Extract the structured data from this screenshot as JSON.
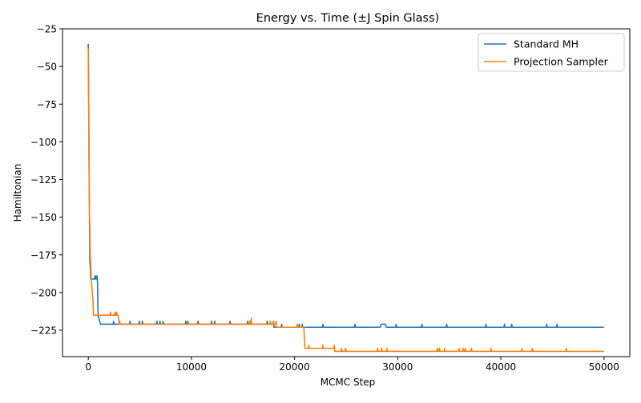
{
  "chart_data": {
    "type": "line",
    "title": "Energy vs. Time (±J Spin Glass)",
    "xlabel": "MCMC Step",
    "ylabel": "Hamiltonian",
    "xlim": [
      -2500,
      52500
    ],
    "ylim": [
      -242.5,
      -25
    ],
    "xticks": [
      0,
      10000,
      20000,
      30000,
      40000,
      50000
    ],
    "yticks": [
      -25,
      -50,
      -75,
      -100,
      -125,
      -150,
      -175,
      -200,
      -225
    ],
    "grid": false,
    "legend_position": "top-right",
    "series": [
      {
        "name": "Standard MH",
        "color": "#1f77b4",
        "points": [
          [
            0,
            -35
          ],
          [
            30,
            -60
          ],
          [
            80,
            -120
          ],
          [
            150,
            -178
          ],
          [
            250,
            -191
          ],
          [
            600,
            -191
          ],
          [
            650,
            -189
          ],
          [
            700,
            -191
          ],
          [
            750,
            -189
          ],
          [
            800,
            -191
          ],
          [
            850,
            -189
          ],
          [
            900,
            -194
          ],
          [
            950,
            -216
          ],
          [
            1000,
            -216
          ],
          [
            1100,
            -219
          ],
          [
            1200,
            -221
          ],
          [
            2400,
            -221
          ],
          [
            2450,
            -219
          ],
          [
            2500,
            -221
          ],
          [
            4000,
            -221
          ],
          [
            4050,
            -219
          ],
          [
            4100,
            -221
          ],
          [
            4900,
            -221
          ],
          [
            4950,
            -219
          ],
          [
            5000,
            -221
          ],
          [
            5200,
            -221
          ],
          [
            5250,
            -219
          ],
          [
            5300,
            -221
          ],
          [
            6600,
            -221
          ],
          [
            6650,
            -219
          ],
          [
            6700,
            -221
          ],
          [
            6900,
            -221
          ],
          [
            6950,
            -219
          ],
          [
            7000,
            -221
          ],
          [
            7200,
            -221
          ],
          [
            7250,
            -219
          ],
          [
            7300,
            -221
          ],
          [
            9400,
            -221
          ],
          [
            9450,
            -219
          ],
          [
            9500,
            -221
          ],
          [
            9600,
            -221
          ],
          [
            9650,
            -219
          ],
          [
            9700,
            -221
          ],
          [
            10600,
            -221
          ],
          [
            10650,
            -219
          ],
          [
            10700,
            -221
          ],
          [
            11900,
            -221
          ],
          [
            11950,
            -219
          ],
          [
            12000,
            -221
          ],
          [
            12200,
            -221
          ],
          [
            12250,
            -219
          ],
          [
            12300,
            -221
          ],
          [
            13700,
            -221
          ],
          [
            13750,
            -219
          ],
          [
            13800,
            -221
          ],
          [
            15400,
            -221
          ],
          [
            15450,
            -219
          ],
          [
            15500,
            -221
          ],
          [
            17300,
            -221
          ],
          [
            17350,
            -219
          ],
          [
            17400,
            -221
          ],
          [
            17900,
            -221
          ],
          [
            17950,
            -219
          ],
          [
            18000,
            -223
          ],
          [
            18700,
            -223
          ],
          [
            18750,
            -221
          ],
          [
            18800,
            -223
          ],
          [
            20400,
            -223
          ],
          [
            20450,
            -221
          ],
          [
            20500,
            -223
          ],
          [
            20700,
            -223
          ],
          [
            20750,
            -221
          ],
          [
            20800,
            -223
          ],
          [
            22700,
            -223
          ],
          [
            22750,
            -221
          ],
          [
            22800,
            -223
          ],
          [
            25800,
            -223
          ],
          [
            25850,
            -221
          ],
          [
            25900,
            -223
          ],
          [
            28300,
            -223
          ],
          [
            28400,
            -221
          ],
          [
            28800,
            -221
          ],
          [
            28900,
            -223
          ],
          [
            29800,
            -223
          ],
          [
            29850,
            -221
          ],
          [
            29900,
            -223
          ],
          [
            32300,
            -223
          ],
          [
            32350,
            -221
          ],
          [
            32400,
            -223
          ],
          [
            34700,
            -223
          ],
          [
            34750,
            -221
          ],
          [
            34800,
            -223
          ],
          [
            38500,
            -223
          ],
          [
            38550,
            -221
          ],
          [
            38600,
            -223
          ],
          [
            40300,
            -223
          ],
          [
            40350,
            -221
          ],
          [
            40400,
            -223
          ],
          [
            41000,
            -223
          ],
          [
            41050,
            -221
          ],
          [
            41100,
            -223
          ],
          [
            44400,
            -223
          ],
          [
            44450,
            -221
          ],
          [
            44500,
            -223
          ],
          [
            45400,
            -223
          ],
          [
            45450,
            -221
          ],
          [
            45500,
            -223
          ],
          [
            50000,
            -223
          ]
        ]
      },
      {
        "name": "Projection Sampler",
        "color": "#ff7f0e",
        "points": [
          [
            0,
            -38
          ],
          [
            40,
            -80
          ],
          [
            100,
            -140
          ],
          [
            200,
            -175
          ],
          [
            300,
            -192
          ],
          [
            450,
            -205
          ],
          [
            500,
            -215
          ],
          [
            2100,
            -215
          ],
          [
            2150,
            -213
          ],
          [
            2200,
            -215
          ],
          [
            2550,
            -215
          ],
          [
            2600,
            -213
          ],
          [
            2650,
            -215
          ],
          [
            2700,
            -215
          ],
          [
            2750,
            -213
          ],
          [
            2800,
            -215
          ],
          [
            2900,
            -215
          ],
          [
            3000,
            -221
          ],
          [
            3050,
            -219
          ],
          [
            3100,
            -221
          ],
          [
            15600,
            -221
          ],
          [
            15650,
            -219
          ],
          [
            15700,
            -221
          ],
          [
            15750,
            -221
          ],
          [
            15800,
            -217
          ],
          [
            15850,
            -221
          ],
          [
            17600,
            -221
          ],
          [
            17650,
            -219
          ],
          [
            17700,
            -221
          ],
          [
            17900,
            -221
          ],
          [
            17950,
            -219
          ],
          [
            18000,
            -221
          ],
          [
            18150,
            -221
          ],
          [
            18200,
            -219
          ],
          [
            18250,
            -223
          ],
          [
            20200,
            -223
          ],
          [
            20250,
            -221
          ],
          [
            20300,
            -223
          ],
          [
            20900,
            -223
          ],
          [
            21000,
            -237
          ],
          [
            21350,
            -237
          ],
          [
            21400,
            -235
          ],
          [
            21450,
            -237
          ],
          [
            22700,
            -237
          ],
          [
            22750,
            -235
          ],
          [
            22800,
            -237
          ],
          [
            23800,
            -237
          ],
          [
            23850,
            -235
          ],
          [
            23900,
            -239
          ],
          [
            24500,
            -239
          ],
          [
            24550,
            -237
          ],
          [
            24600,
            -239
          ],
          [
            24900,
            -239
          ],
          [
            24950,
            -237
          ],
          [
            25000,
            -239
          ],
          [
            28000,
            -239
          ],
          [
            28050,
            -237
          ],
          [
            28100,
            -239
          ],
          [
            28400,
            -239
          ],
          [
            28450,
            -237
          ],
          [
            28500,
            -239
          ],
          [
            28900,
            -239
          ],
          [
            28950,
            -237
          ],
          [
            29000,
            -239
          ],
          [
            33800,
            -239
          ],
          [
            33850,
            -237
          ],
          [
            33900,
            -239
          ],
          [
            34000,
            -239
          ],
          [
            34050,
            -237
          ],
          [
            34100,
            -239
          ],
          [
            34500,
            -239
          ],
          [
            34550,
            -237
          ],
          [
            34600,
            -239
          ],
          [
            35900,
            -239
          ],
          [
            35950,
            -237
          ],
          [
            36000,
            -239
          ],
          [
            36300,
            -239
          ],
          [
            36350,
            -237
          ],
          [
            36400,
            -239
          ],
          [
            36500,
            -239
          ],
          [
            36550,
            -237
          ],
          [
            36600,
            -239
          ],
          [
            37100,
            -239
          ],
          [
            37150,
            -237
          ],
          [
            37200,
            -239
          ],
          [
            39000,
            -239
          ],
          [
            39050,
            -237
          ],
          [
            39100,
            -239
          ],
          [
            42000,
            -239
          ],
          [
            42050,
            -237
          ],
          [
            42100,
            -239
          ],
          [
            43000,
            -239
          ],
          [
            43050,
            -237
          ],
          [
            43100,
            -239
          ],
          [
            46300,
            -239
          ],
          [
            46350,
            -237
          ],
          [
            46400,
            -239
          ],
          [
            50000,
            -239
          ]
        ]
      }
    ]
  }
}
